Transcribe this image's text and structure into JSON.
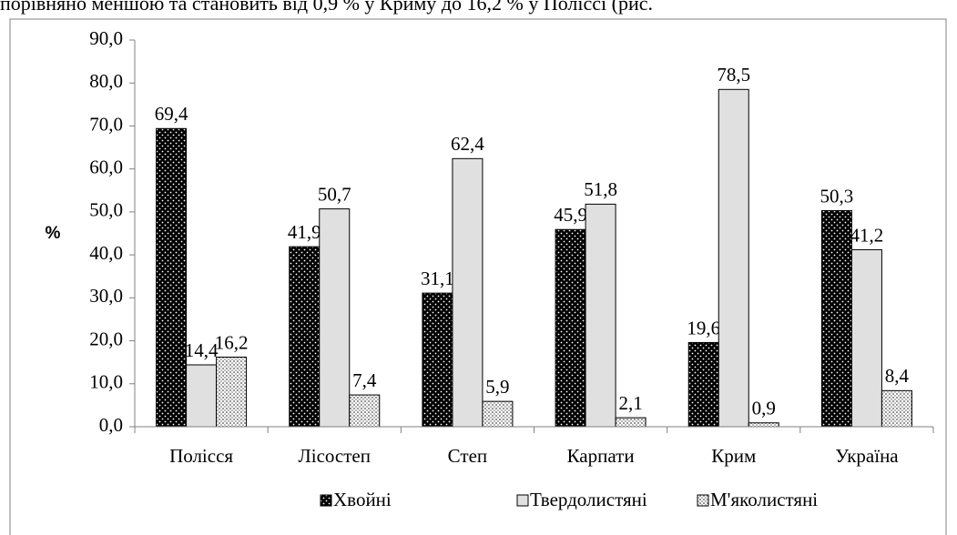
{
  "caption_fragment": "порівняно меншою та становить від 0,9 % у Криму до 16,2 % у Поліссі (рис.",
  "chart_data": {
    "type": "bar",
    "ylabel": "%",
    "categories": [
      "Полісся",
      "Лісостеп",
      "Степ",
      "Карпати",
      "Крим",
      "Україна"
    ],
    "series": [
      {
        "name": "Хвойні",
        "color": "#000000",
        "values": [
          69.4,
          41.9,
          31.1,
          45.9,
          19.6,
          50.3
        ],
        "value_labels": [
          "69,4",
          "41,9",
          "31,1",
          "45,9",
          "19,6",
          "50,3"
        ]
      },
      {
        "name": "Твердолистяні",
        "color": "#e0e0e0",
        "values": [
          14.4,
          50.7,
          62.4,
          51.8,
          78.5,
          41.2
        ],
        "value_labels": [
          "14,4",
          "50,7",
          "62,4",
          "51,8",
          "78,5",
          "41,2"
        ]
      },
      {
        "name": "М'яколистяні",
        "color": "#d0d0d0",
        "values": [
          16.2,
          7.4,
          5.9,
          2.1,
          0.9,
          8.4
        ],
        "value_labels": [
          "16,2",
          "7,4",
          "5,9",
          "2,1",
          "0,9",
          "8,4"
        ]
      }
    ],
    "ylim": [
      0,
      90
    ],
    "yticks": [
      {
        "value": 0,
        "label": "0,0"
      },
      {
        "value": 10,
        "label": "10,0"
      },
      {
        "value": 20,
        "label": "20,0"
      },
      {
        "value": 30,
        "label": "30,0"
      },
      {
        "value": 40,
        "label": "40,0"
      },
      {
        "value": 50,
        "label": "50,0"
      },
      {
        "value": 60,
        "label": "60,0"
      },
      {
        "value": 70,
        "label": "70,0"
      },
      {
        "value": 80,
        "label": "80,0"
      },
      {
        "value": 90,
        "label": "90,0"
      }
    ],
    "grid": false,
    "legend": "bottom"
  }
}
